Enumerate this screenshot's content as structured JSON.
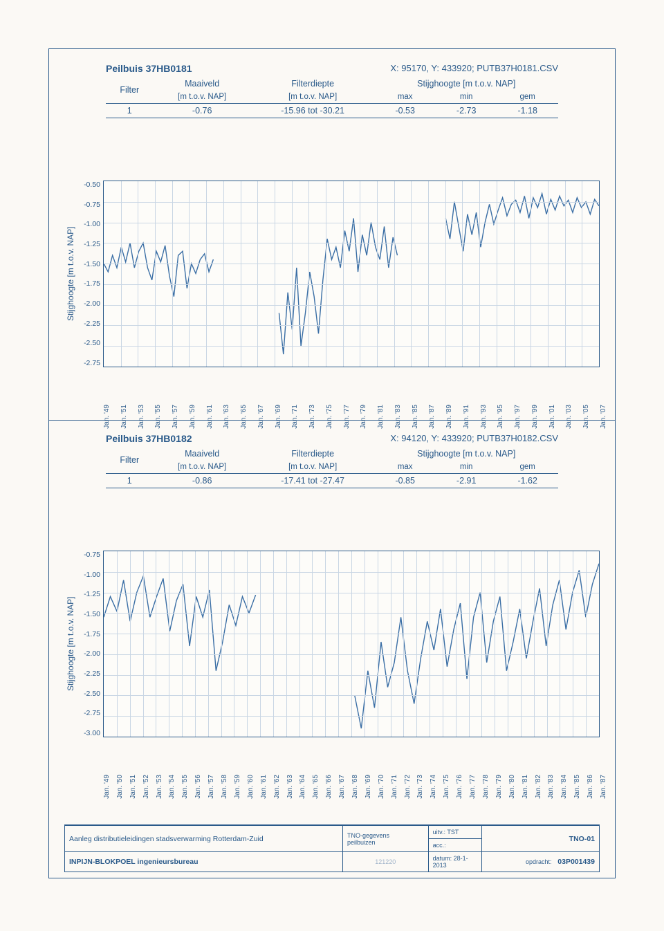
{
  "page_bg": "#fbf9f5",
  "frame_color": "#2a5a8a",
  "text_color": "#2a5a8a",
  "line_color": "#3a6ea5",
  "grid_color": "#c9d6e4",
  "section1": {
    "title": "Peilbuis 37HB0181",
    "meta": "X: 95170, Y: 433920;  PUTB37H0181.CSV",
    "columns": {
      "filter": "Filter",
      "maaiveld": "Maaiveld",
      "maaiveld_sub": "[m t.o.v. NAP]",
      "filterdiepte": "Filterdiepte",
      "filterdiepte_sub": "[m t.o.v. NAP]",
      "stijg": "Stijghoogte [m t.o.v. NAP]",
      "max": "max",
      "min": "min",
      "gem": "gem"
    },
    "row": {
      "filter": "1",
      "maaiveld": "-0.76",
      "filterdiepte": "-15.96 tot -30.21",
      "max": "-0.53",
      "min": "-2.73",
      "gem": "-1.18"
    },
    "chart": {
      "type": "line",
      "ylabel": "Stijghoogte [m t.o.v. NAP]",
      "ylim": [
        -2.75,
        -0.5
      ],
      "ytick_step": 0.25,
      "yticks": [
        "-0.50",
        "-0.75",
        "-1.00",
        "-1.25",
        "-1.50",
        "-1.75",
        "-2.00",
        "-2.25",
        "-2.50",
        "-2.75"
      ],
      "xticks": [
        "Jan. '49",
        "Jan. '51",
        "Jan. '53",
        "Jan. '55",
        "Jan. '57",
        "Jan. '59",
        "Jan. '61",
        "Jan. '63",
        "Jan. '65",
        "Jan. '67",
        "Jan. '69",
        "Jan. '71",
        "Jan. '73",
        "Jan. '75",
        "Jan. '77",
        "Jan. '79",
        "Jan. '81",
        "Jan. '83",
        "Jan. '85",
        "Jan. '87",
        "Jan. '89",
        "Jan. '91",
        "Jan. '93",
        "Jan. '95",
        "Jan. '97",
        "Jan. '99",
        "Jan. '01",
        "Jan. '03",
        "Jan. '05",
        "Jan. '07"
      ],
      "x_range": [
        1949,
        2007
      ],
      "series_y": [
        -1.5,
        -1.6,
        -1.4,
        -1.55,
        -1.3,
        -1.48,
        -1.25,
        -1.55,
        -1.35,
        -1.25,
        -1.55,
        -1.7,
        -1.35,
        -1.48,
        -1.28,
        -1.65,
        -1.9,
        -1.4,
        -1.35,
        -1.8,
        -1.5,
        -1.62,
        -1.45,
        -1.38,
        -1.6,
        -1.45,
        null,
        null,
        null,
        null,
        null,
        null,
        null,
        null,
        null,
        null,
        null,
        null,
        null,
        null,
        -2.1,
        -2.6,
        -1.85,
        -2.3,
        -1.55,
        -2.5,
        -2.1,
        -1.6,
        -1.9,
        -2.35,
        -1.7,
        -1.2,
        -1.45,
        -1.3,
        -1.55,
        -1.1,
        -1.35,
        -0.95,
        -1.6,
        -1.15,
        -1.4,
        -1.0,
        -1.3,
        -1.45,
        -1.05,
        -1.55,
        -1.18,
        -1.4,
        null,
        null,
        null,
        null,
        null,
        null,
        null,
        null,
        null,
        null,
        -0.95,
        -1.2,
        -0.75,
        -1.05,
        -1.35,
        -0.9,
        -1.15,
        -0.88,
        -1.3,
        -1.0,
        -0.78,
        -1.02,
        -0.85,
        -0.7,
        -0.92,
        -0.78,
        -0.73,
        -0.88,
        -0.68,
        -0.95,
        -0.7,
        -0.82,
        -0.65,
        -0.9,
        -0.72,
        -0.85,
        -0.68,
        -0.8,
        -0.73,
        -0.88,
        -0.7,
        -0.82,
        -0.75,
        -0.9,
        -0.72,
        -0.8
      ]
    }
  },
  "section2": {
    "title": "Peilbuis 37HB0182",
    "meta": "X: 94120, Y: 433920;  PUTB37H0182.CSV",
    "columns": {
      "filter": "Filter",
      "maaiveld": "Maaiveld",
      "maaiveld_sub": "[m t.o.v. NAP]",
      "filterdiepte": "Filterdiepte",
      "filterdiepte_sub": "[m t.o.v. NAP]",
      "stijg": "Stijghoogte [m t.o.v. NAP]",
      "max": "max",
      "min": "min",
      "gem": "gem"
    },
    "row": {
      "filter": "1",
      "maaiveld": "-0.86",
      "filterdiepte": "-17.41 tot -27.47",
      "max": "-0.85",
      "min": "-2.91",
      "gem": "-1.62"
    },
    "chart": {
      "type": "line",
      "ylabel": "Stijghoogte [m t.o.v. NAP]",
      "ylim": [
        -3.0,
        -0.75
      ],
      "ytick_step": 0.25,
      "yticks": [
        "-0.75",
        "-1.00",
        "-1.25",
        "-1.50",
        "-1.75",
        "-2.00",
        "-2.25",
        "-2.50",
        "-2.75",
        "-3.00"
      ],
      "xticks": [
        "Jan. '49",
        "Jan. '50",
        "Jan. '51",
        "Jan. '52",
        "Jan. '53",
        "Jan. '54",
        "Jan. '55",
        "Jan. '56",
        "Jan. '57",
        "Jan. '58",
        "Jan. '59",
        "Jan. '60",
        "Jan. '61",
        "Jan. '62",
        "Jan. '63",
        "Jan. '64",
        "Jan. '65",
        "Jan. '66",
        "Jan. '67",
        "Jan. '68",
        "Jan. '69",
        "Jan. '70",
        "Jan. '71",
        "Jan. '72",
        "Jan. '73",
        "Jan. '74",
        "Jan. '75",
        "Jan. '76",
        "Jan. '77",
        "Jan. '78",
        "Jan. '79",
        "Jan. '80",
        "Jan. '81",
        "Jan. '82",
        "Jan. '83",
        "Jan. '84",
        "Jan. '85",
        "Jan. '86",
        "Jan. '87"
      ],
      "x_range": [
        1949,
        1987
      ],
      "series_y": [
        -1.55,
        -1.3,
        -1.48,
        -1.1,
        -1.6,
        -1.25,
        -1.05,
        -1.55,
        -1.3,
        -1.08,
        -1.72,
        -1.35,
        -1.15,
        -1.9,
        -1.3,
        -1.55,
        -1.22,
        -2.2,
        -1.85,
        -1.4,
        -1.65,
        -1.3,
        -1.5,
        -1.28,
        null,
        null,
        null,
        null,
        null,
        null,
        null,
        null,
        null,
        null,
        null,
        null,
        null,
        null,
        -2.5,
        -2.9,
        -2.2,
        -2.65,
        -1.85,
        -2.4,
        -2.1,
        -1.55,
        -2.2,
        -2.6,
        -2.05,
        -1.6,
        -1.95,
        -1.45,
        -2.15,
        -1.7,
        -1.38,
        -2.3,
        -1.55,
        -1.25,
        -2.1,
        -1.6,
        -1.3,
        -2.2,
        -1.85,
        -1.45,
        -2.05,
        -1.6,
        -1.2,
        -1.9,
        -1.4,
        -1.1,
        -1.7,
        -1.25,
        -0.98,
        -1.55,
        -1.15,
        -0.9
      ]
    }
  },
  "footer": {
    "project": "Aanleg distributieleidingen stadsverwarming Rotterdam-Zuid",
    "middle_label": "TNO-gegevens",
    "middle_sub": "peilbuizen",
    "uitv": "uitv.: TST",
    "acc": "acc.:",
    "doc_right": "TNO-01",
    "company": "INPIJN-BLOKPOEL ingenieursbureau",
    "code": "121220",
    "datum": "datum:  28-1-2013",
    "opdracht_label": "opdracht:",
    "opdracht": "03P001439"
  }
}
